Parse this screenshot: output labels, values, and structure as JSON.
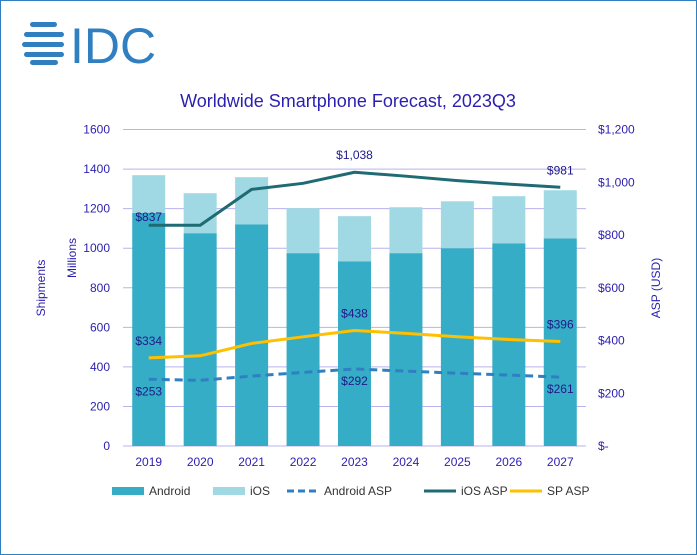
{
  "logo": {
    "text": "IDC",
    "color": "#2f7fc1"
  },
  "chart_data": {
    "type": "bar",
    "title": "Worldwide Smartphone Forecast, 2023Q3",
    "ylabel_left": "Shipments",
    "ylabel_left_unit": "Millions",
    "ylabel_right": "ASP (USD)",
    "ylim_left": [
      0,
      1600
    ],
    "ylim_right": [
      0,
      1200
    ],
    "yticks_left": [
      "0",
      "200",
      "400",
      "600",
      "800",
      "1000",
      "1200",
      "1400",
      "1600"
    ],
    "yticks_right": [
      "$-",
      "$200",
      "$400",
      "$600",
      "$800",
      "$1,000",
      "$1,200"
    ],
    "grid": true,
    "legend": "bottom",
    "categories": [
      "2019",
      "2020",
      "2021",
      "2022",
      "2023",
      "2024",
      "2025",
      "2026",
      "2027"
    ],
    "series": [
      {
        "name": "Android",
        "kind": "stacked-bar",
        "axis": "left",
        "color": "#36adc7",
        "values": [
          1178,
          1076,
          1121,
          975,
          934,
          975,
          1000,
          1025,
          1050
        ]
      },
      {
        "name": "iOS",
        "kind": "stacked-bar",
        "axis": "left",
        "color": "#a0d9e3",
        "values": [
          191,
          202,
          238,
          227,
          228,
          232,
          237,
          238,
          243
        ]
      },
      {
        "name": "Android ASP",
        "kind": "dashed-line",
        "axis": "right",
        "color": "#2f7fc1",
        "values": [
          253,
          249,
          265,
          279,
          292,
          284,
          276,
          269,
          261
        ]
      },
      {
        "name": "iOS ASP",
        "kind": "line",
        "axis": "right",
        "color": "#1f6b73",
        "values": [
          837,
          837,
          973,
          996,
          1038,
          1023,
          1006,
          993,
          981
        ]
      },
      {
        "name": "SP ASP",
        "kind": "line",
        "axis": "right",
        "color": "#ffc000",
        "values": [
          334,
          342,
          389,
          414,
          438,
          427,
          414,
          404,
          396
        ]
      }
    ],
    "data_labels": {
      "iOS ASP": {
        "0": "$837",
        "4": "$1,038",
        "8": "$981"
      },
      "SP ASP": {
        "0": "$334",
        "4": "$438",
        "8": "$396"
      },
      "Android ASP": {
        "0": "$253",
        "4": "$292",
        "8": "$261"
      }
    }
  }
}
